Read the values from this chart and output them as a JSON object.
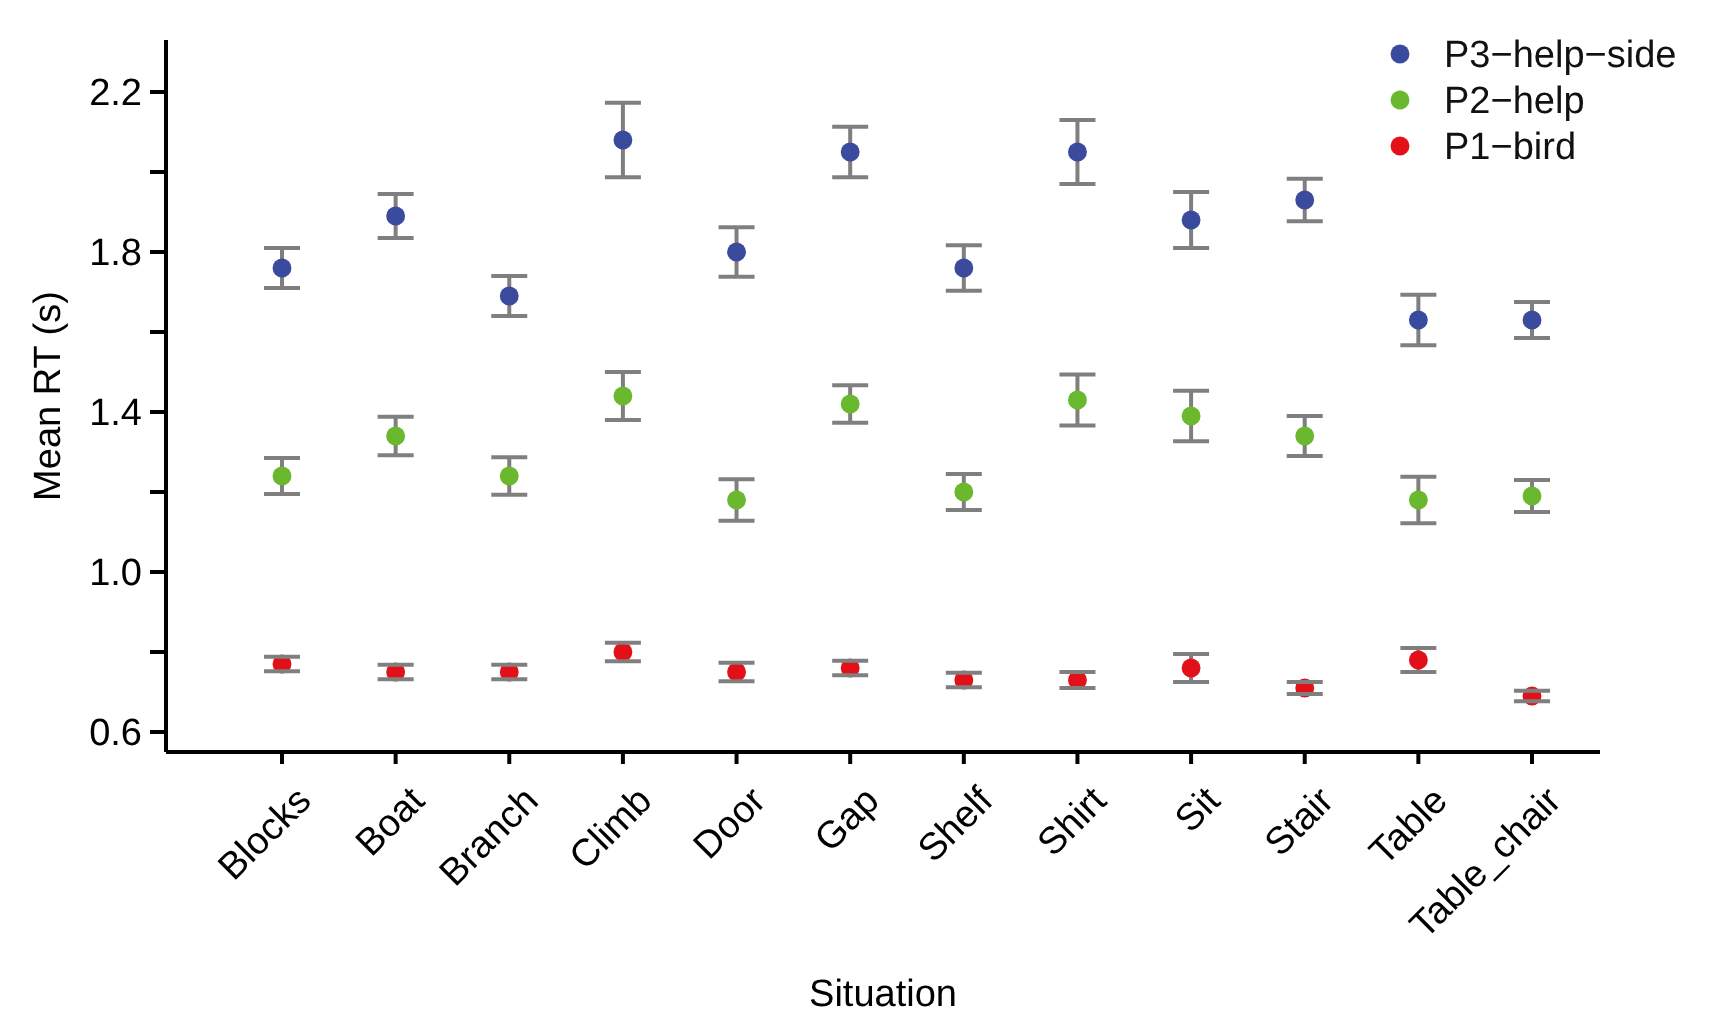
{
  "chart_data": {
    "type": "scatter",
    "xlabel": "Situation",
    "ylabel": "Mean RT (s)",
    "categories": [
      "Blocks",
      "Boat",
      "Branch",
      "Climb",
      "Door",
      "Gap",
      "Shelf",
      "Shirt",
      "Sit",
      "Stair",
      "Table",
      "Table_chair"
    ],
    "series": [
      {
        "name": "P3−help−side",
        "color": "#3a4a9c",
        "values": [
          1.76,
          1.89,
          1.69,
          2.08,
          1.8,
          2.05,
          1.76,
          2.05,
          1.88,
          1.93,
          1.63,
          1.63
        ],
        "errors": [
          0.05,
          0.055,
          0.05,
          0.093,
          0.062,
          0.063,
          0.057,
          0.08,
          0.07,
          0.053,
          0.063,
          0.045
        ]
      },
      {
        "name": "P2−help",
        "color": "#6ab82e",
        "values": [
          1.24,
          1.34,
          1.24,
          1.44,
          1.18,
          1.42,
          1.2,
          1.43,
          1.39,
          1.34,
          1.18,
          1.19
        ],
        "errors": [
          0.045,
          0.048,
          0.047,
          0.06,
          0.052,
          0.047,
          0.045,
          0.064,
          0.063,
          0.05,
          0.058,
          0.04
        ]
      },
      {
        "name": "P1−bird",
        "color": "#e3101a",
        "values": [
          0.77,
          0.75,
          0.75,
          0.8,
          0.75,
          0.76,
          0.73,
          0.73,
          0.76,
          0.71,
          0.78,
          0.69
        ],
        "errors": [
          0.018,
          0.018,
          0.018,
          0.023,
          0.023,
          0.018,
          0.018,
          0.02,
          0.035,
          0.015,
          0.03,
          0.013
        ]
      }
    ],
    "ylim": [
      0.55,
      2.33
    ],
    "yticks": [
      {
        "value": 0.6,
        "label": "0.6"
      },
      {
        "value": 0.8,
        "label": null
      },
      {
        "value": 1.0,
        "label": "1.0"
      },
      {
        "value": 1.2,
        "label": null
      },
      {
        "value": 1.4,
        "label": "1.4"
      },
      {
        "value": 1.6,
        "label": null
      },
      {
        "value": 1.8,
        "label": "1.8"
      },
      {
        "value": 2.0,
        "label": null
      },
      {
        "value": 2.2,
        "label": "2.2"
      }
    ],
    "marker": "circle",
    "legend": "top right",
    "grid": false
  }
}
